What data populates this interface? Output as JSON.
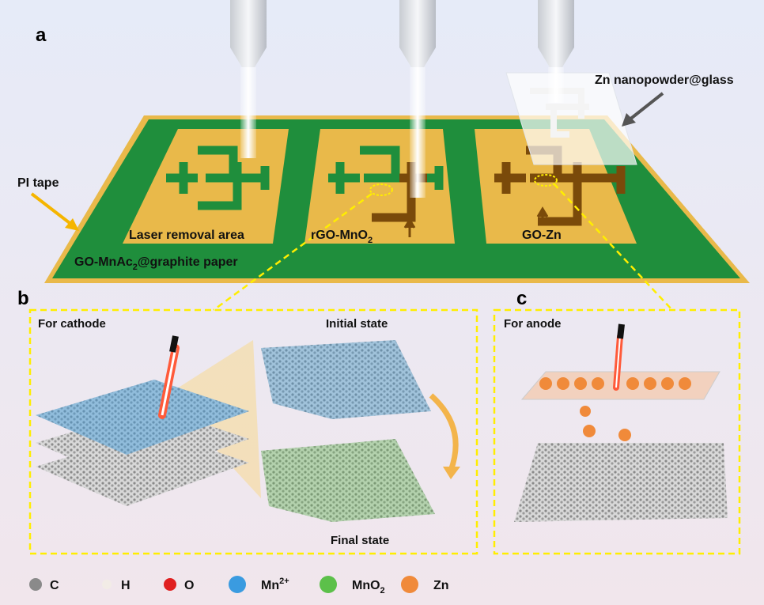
{
  "panels": {
    "a": "a",
    "b": "b",
    "c": "c"
  },
  "labels": {
    "pi_tape": "PI tape",
    "zn_glass": "Zn nanopowder@glass",
    "laser_removal": "Laser removal area",
    "rgo_mno2": {
      "main": "rGO-MnO",
      "sub": "2"
    },
    "go_zn": "GO-Zn",
    "substrate": {
      "pre": "GO-MnAc",
      "sub": "2",
      "post": "@graphite paper"
    },
    "for_cathode": "For cathode",
    "initial_state": "Initial state",
    "final_state": "Final state",
    "for_anode": "For anode"
  },
  "legend": [
    {
      "label": "C",
      "color": "#8a8a8a"
    },
    {
      "label": "H",
      "color": "#f2ece6"
    },
    {
      "label": "O",
      "color": "#e02020"
    },
    {
      "label": "Mn",
      "sup": "2+",
      "color": "#3a9be0"
    },
    {
      "label": "MnO",
      "sub": "2",
      "color": "#5cc04a"
    },
    {
      "label": "Zn",
      "color": "#f08a3a"
    }
  ],
  "colors": {
    "board": "#1f8e3c",
    "pad": "#e9b94a",
    "reduced": "#7a4a0a",
    "dashed_box": "#ffee00"
  }
}
